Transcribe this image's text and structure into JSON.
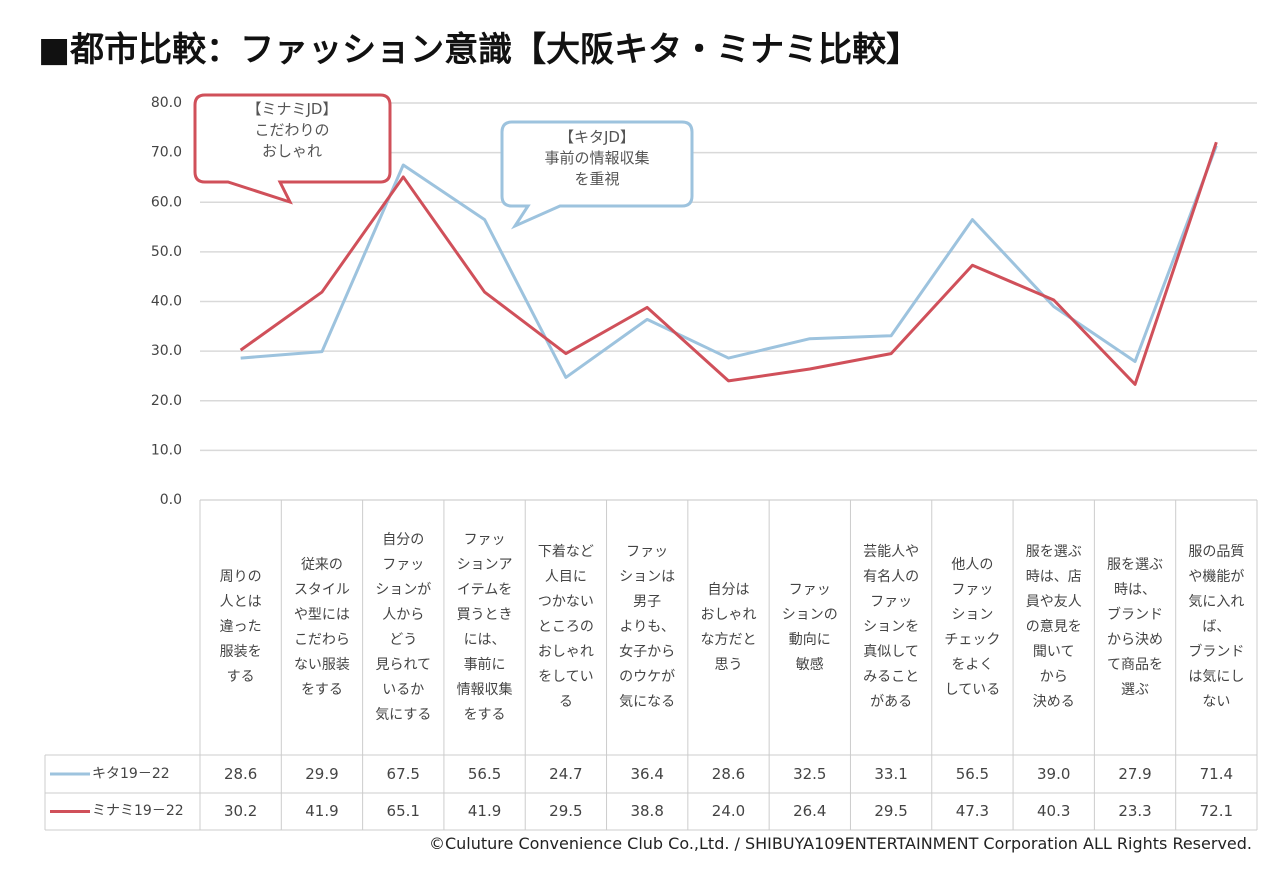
{
  "chart_data": {
    "type": "line",
    "title": "■都市比較：ファッション意識【大阪キタ・ミナミ比較】",
    "categories": [
      "周りの\n人とは\n違った\n服装を\nする",
      "従来の\nスタイル\nや型には\nこだわら\nない服装\nをする",
      "自分の\nファッ\nションが\n人から\nどう\n見られて\nいるか\n気にする",
      "ファッ\nションア\nイテムを\n買うとき\nには、\n事前に\n情報収集\nをする",
      "下着など\n人目に\nつかない\nところの\nおしゃれ\nをしてい\nる",
      "ファッ\nションは\n男子\nよりも、\n女子から\nのウケが\n気になる",
      "自分は\nおしゃれ\nな方だと\n思う",
      "ファッ\nションの\n動向に\n敏感",
      "芸能人や\n有名人の\nファッ\nションを\n真似して\nみること\nがある",
      "他人の\nファッ\nション\nチェック\nをよく\nしている",
      "服を選ぶ\n時は、店\n員や友人\nの意見を\n聞いて\nから\n決める",
      "服を選ぶ\n時は、\nブランド\nから決め\nて商品を\n選ぶ",
      "服の品質\nや機能が\n気に入れ\nば、\nブランド\nは気にし\nない"
    ],
    "series": [
      {
        "name": "キタ19－22",
        "color": "#9dc3de",
        "values": [
          28.6,
          29.9,
          67.5,
          56.5,
          24.7,
          36.4,
          28.6,
          32.5,
          33.1,
          56.5,
          39.0,
          27.9,
          71.4
        ],
        "value_labels": [
          "28.6",
          "29.9",
          "67.5",
          "56.5",
          "24.7",
          "36.4",
          "28.6",
          "32.5",
          "33.1",
          "56.5",
          "39.0",
          "27.9",
          "71.4"
        ]
      },
      {
        "name": "ミナミ19－22",
        "color": "#d0505a",
        "values": [
          30.2,
          41.9,
          65.1,
          41.9,
          29.5,
          38.8,
          24.0,
          26.4,
          29.5,
          47.3,
          40.3,
          23.3,
          72.1
        ],
        "value_labels": [
          "30.2",
          "41.9",
          "65.1",
          "41.9",
          "29.5",
          "38.8",
          "24.0",
          "26.4",
          "29.5",
          "47.3",
          "40.3",
          "23.3",
          "72.1"
        ]
      }
    ],
    "ylim": [
      0,
      80
    ],
    "yticks": [
      {
        "value": 0,
        "label": "0.0"
      },
      {
        "value": 10,
        "label": "10.0"
      },
      {
        "value": 20,
        "label": "20.0"
      },
      {
        "value": 30,
        "label": "30.0"
      },
      {
        "value": 40,
        "label": "40.0"
      },
      {
        "value": 50,
        "label": "50.0"
      },
      {
        "value": 60,
        "label": "60.0"
      },
      {
        "value": 70,
        "label": "70.0"
      },
      {
        "value": 80,
        "label": "80.0"
      }
    ],
    "grid": true,
    "annotations": [
      {
        "text": "【ミナミJD】\nこだわりの\nおしゃれ"
      },
      {
        "text": "【キタJD】\n事前の情報収集\nを重視"
      }
    ],
    "footnote": "©Culuture Convenience Club Co.,Ltd. / SHIBUYA109ENTERTAINMENT Corporation ALL Rights Reserved."
  }
}
